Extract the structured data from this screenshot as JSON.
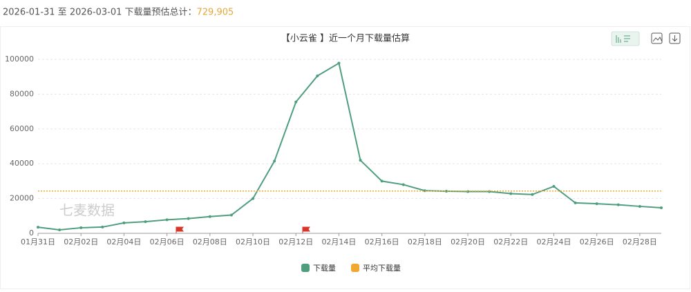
{
  "header": {
    "text": "2026-01-31 至 2026-03-01 下载量预估总计：",
    "total": "729,905"
  },
  "watermark": "七麦数据",
  "chart_data": {
    "type": "line",
    "title": "【小云雀 】近一个月下载量估算",
    "categories": [
      "01月31日",
      null,
      "02月02日",
      null,
      "02月04日",
      null,
      "02月06日",
      null,
      "02月08日",
      null,
      "02月10日",
      null,
      "02月12日",
      null,
      "02月14日",
      null,
      "02月16日",
      null,
      "02月18日",
      null,
      "02月20日",
      null,
      "02月22日",
      null,
      "02月24日",
      null,
      "02月26日",
      null,
      "02月28日",
      null
    ],
    "series": [
      {
        "name": "下载量",
        "color": "#4e9e7e",
        "values": [
          3500,
          2000,
          3200,
          3600,
          6000,
          6700,
          7800,
          8500,
          9600,
          10500,
          20000,
          41500,
          75500,
          90500,
          97800,
          42000,
          30000,
          28000,
          24500,
          24200,
          24000,
          24000,
          22800,
          22300,
          27000,
          17500,
          17000,
          16400,
          15500,
          14700
        ]
      },
      {
        "name": "平均下载量",
        "color": "#f0a830",
        "value": 24330
      }
    ],
    "ylim": [
      0,
      100000
    ],
    "yticks": [
      0,
      20000,
      40000,
      60000,
      80000,
      100000
    ],
    "grid": true
  }
}
